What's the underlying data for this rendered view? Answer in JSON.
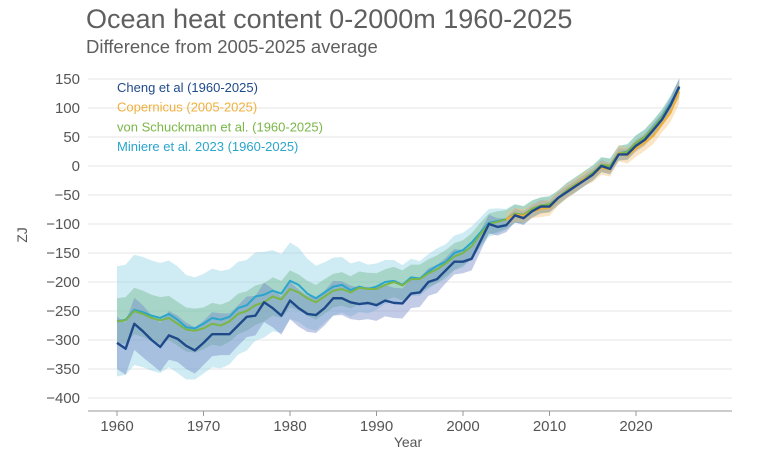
{
  "chart_data": {
    "type": "line",
    "title": "Ocean heat content 0-2000m 1960-2025",
    "subtitle": "Difference from 2005-2025 average",
    "xlabel": "Year",
    "ylabel": "ZJ",
    "xlim": [
      1957,
      2031
    ],
    "ylim": [
      -410,
      160
    ],
    "xticks": [
      1960,
      1970,
      1980,
      1990,
      2000,
      2010,
      2020
    ],
    "yticks": [
      150,
      100,
      50,
      0,
      -50,
      -100,
      -150,
      -200,
      -250,
      -300,
      -350,
      -400
    ],
    "grid": true,
    "legend_placement": "top-left",
    "series": [
      {
        "name": "Cheng et al (1960-2025)",
        "color": "#1f4a8a",
        "band_color": "#6f86c6",
        "start": 1960,
        "values": [
          -305,
          -315,
          -272,
          -285,
          -300,
          -312,
          -292,
          -298,
          -310,
          -318,
          -305,
          -290,
          -290,
          -290,
          -275,
          -260,
          -258,
          -235,
          -245,
          -258,
          -232,
          -245,
          -255,
          -257,
          -245,
          -228,
          -228,
          -235,
          -238,
          -236,
          -240,
          -232,
          -236,
          -237,
          -220,
          -218,
          -200,
          -195,
          -180,
          -165,
          -165,
          -160,
          -130,
          -100,
          -105,
          -102,
          -85,
          -90,
          -78,
          -70,
          -70,
          -55,
          -45,
          -35,
          -25,
          -15,
          0,
          -5,
          20,
          20,
          35,
          45,
          62,
          80,
          105,
          137
        ],
        "uncertainty": [
          45,
          45,
          45,
          45,
          42,
          42,
          42,
          40,
          40,
          40,
          38,
          38,
          36,
          36,
          35,
          35,
          34,
          34,
          33,
          33,
          32,
          32,
          31,
          31,
          30,
          30,
          29,
          29,
          28,
          28,
          27,
          27,
          26,
          26,
          25,
          25,
          24,
          24,
          22,
          22,
          20,
          20,
          18,
          16,
          15,
          12,
          12,
          12,
          11,
          11,
          10,
          10,
          10,
          10,
          10,
          10,
          10,
          10,
          10,
          10,
          10,
          10,
          11,
          11,
          12,
          14
        ]
      },
      {
        "name": "Copernicus (2005-2025)",
        "color": "#efb03c",
        "band_color": "#f2c27a",
        "start": 2005,
        "values": [
          -92,
          -84,
          -86,
          -78,
          -74,
          -72,
          -56,
          -44,
          -34,
          -22,
          -16,
          -3,
          -6,
          22,
          18,
          30,
          40,
          52,
          72,
          92,
          128
        ],
        "uncertainty": [
          12,
          12,
          12,
          12,
          14,
          14,
          12,
          12,
          12,
          12,
          12,
          12,
          12,
          14,
          14,
          14,
          14,
          14,
          14,
          16,
          20
        ]
      },
      {
        "name": "von Schuckmann et al. (1960-2025)",
        "color": "#7ab648",
        "band_color": "#6fba8c",
        "start": 1960,
        "values": [
          -268,
          -266,
          -250,
          -255,
          -262,
          -266,
          -262,
          -272,
          -282,
          -284,
          -280,
          -272,
          -275,
          -268,
          -255,
          -250,
          -240,
          -235,
          -225,
          -230,
          -212,
          -218,
          -228,
          -235,
          -225,
          -215,
          -212,
          -218,
          -210,
          -212,
          -212,
          -205,
          -200,
          -206,
          -195,
          -195,
          -185,
          -178,
          -168,
          -156,
          -150,
          -138,
          -118,
          -100,
          -96,
          -92,
          -82,
          -84,
          -74,
          -68,
          -66,
          -55,
          -42,
          -32,
          -22,
          -12,
          2,
          0,
          22,
          24,
          40,
          50,
          66,
          84,
          106,
          134
        ],
        "uncertainty": [
          40,
          40,
          40,
          40,
          40,
          40,
          38,
          38,
          38,
          38,
          36,
          36,
          36,
          35,
          35,
          34,
          34,
          33,
          33,
          32,
          32,
          31,
          30,
          30,
          30,
          29,
          29,
          28,
          28,
          28,
          27,
          27,
          26,
          26,
          25,
          25,
          24,
          24,
          23,
          23,
          22,
          22,
          20,
          18,
          18,
          16,
          16,
          15,
          15,
          14,
          14,
          13,
          13,
          13,
          13,
          13,
          13,
          13,
          13,
          13,
          13,
          13,
          13,
          13,
          14,
          16
        ]
      },
      {
        "name": "Miniere et al. 2023 (1960-2025)",
        "color": "#2aa5cc",
        "band_color": "#8ccfe2",
        "start": 1960,
        "values": [
          -268,
          -265,
          -248,
          -252,
          -258,
          -262,
          -255,
          -265,
          -278,
          -280,
          -272,
          -262,
          -265,
          -260,
          -245,
          -240,
          -225,
          -222,
          -215,
          -220,
          -198,
          -205,
          -220,
          -228,
          -218,
          -208,
          -205,
          -214,
          -208,
          -212,
          -208,
          -200,
          -198,
          -205,
          -192,
          -194,
          -182,
          -172,
          -165,
          -150,
          -145,
          -132,
          -115,
          -98,
          -95,
          -92,
          -82,
          -85,
          -74,
          -68,
          -66,
          -55,
          -42,
          -33,
          -22,
          -12,
          2,
          0,
          22,
          25,
          40,
          50,
          66,
          85,
          108,
          135
        ],
        "uncertainty": [
          95,
          95,
          95,
          95,
          95,
          95,
          92,
          92,
          90,
          88,
          86,
          85,
          84,
          82,
          80,
          78,
          76,
          74,
          70,
          68,
          66,
          64,
          60,
          56,
          52,
          50,
          48,
          46,
          44,
          42,
          40,
          38,
          36,
          34,
          32,
          30,
          30,
          30,
          30,
          30,
          30,
          28,
          26,
          24,
          22,
          18,
          16,
          15,
          14,
          14,
          13,
          13,
          13,
          13,
          13,
          13,
          13,
          13,
          13,
          13,
          13,
          13,
          13,
          13,
          14,
          16
        ]
      }
    ]
  }
}
